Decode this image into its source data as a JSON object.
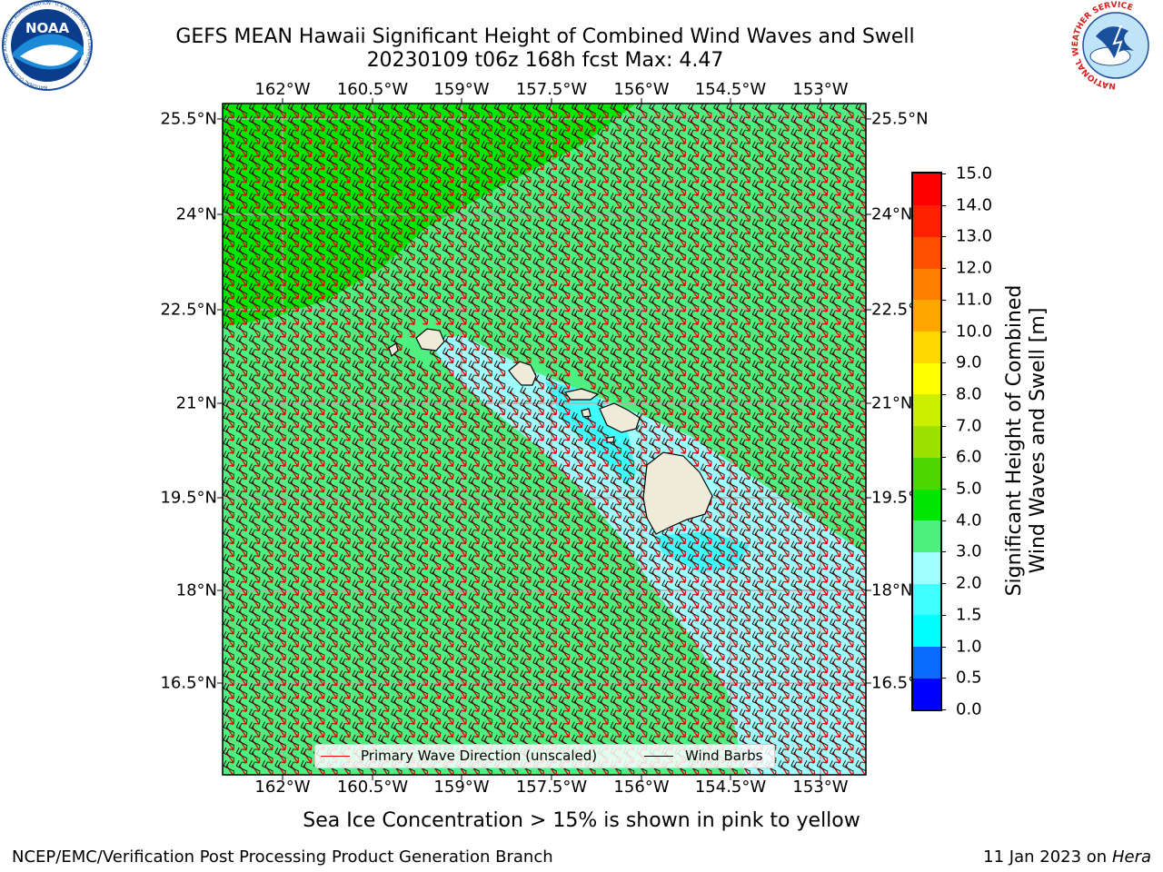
{
  "title_line1": "GEFS MEAN Hawaii Significant Height of Combined Wind Waves and Swell",
  "title_line2": "20230109 t06z 168h fcst   Max: 4.47",
  "lon_ticks": [
    "162°W",
    "160.5°W",
    "159°W",
    "157.5°W",
    "156°W",
    "154.5°W",
    "153°W"
  ],
  "lat_ticks": [
    "25.5°N",
    "24°N",
    "22.5°N",
    "21°N",
    "19.5°N",
    "18°N",
    "16.5°N"
  ],
  "legend": {
    "wave_direction_label": "Primary Wave Direction (unscaled)",
    "wind_barbs_label": "Wind Barbs",
    "wave_direction_color": "#ff0000",
    "wind_barbs_color": "#000000"
  },
  "colorbar": {
    "label_line1": "Significant Height of Combined",
    "label_line2": "Wind Waves and Swell [m]",
    "ticks": [
      "0.0",
      "0.5",
      "1.0",
      "1.5",
      "2.0",
      "3.0",
      "4.0",
      "5.0",
      "6.0",
      "7.0",
      "8.0",
      "9.0",
      "10.0",
      "11.0",
      "12.0",
      "13.0",
      "14.0",
      "15.0"
    ],
    "colors": [
      "#0000ff",
      "#0a6bff",
      "#00ffff",
      "#40ffff",
      "#a0ffff",
      "#50f080",
      "#00e600",
      "#4fd600",
      "#9ee000",
      "#ccee00",
      "#ffff00",
      "#ffd700",
      "#ffa500",
      "#ff8000",
      "#ff5000",
      "#ff2000",
      "#ff0000"
    ]
  },
  "map_colors": {
    "sea_3_4m": "#50f080",
    "sea_4_5m": "#00e600",
    "sea_2_3m": "#a0ffff",
    "sea_1_5_2m": "#40ffff",
    "land": "#efebd9"
  },
  "sea_ice_note": "Sea Ice Concentration > 15% is shown in pink to yellow",
  "footer_left": "NCEP/EMC/Verification Post Processing Product Generation Branch",
  "footer_right_prefix": "11 Jan 2023 on ",
  "footer_right_host": "Hera",
  "logos": {
    "noaa_text": "NOAA",
    "noaa_ring_text": "NATIONAL OCEANIC AND ATMOSPHERIC ADMINISTRATION · U.S. DEPARTMENT OF COMMERCE",
    "nws_ring_text": "NATIONAL WEATHER SERVICE"
  }
}
